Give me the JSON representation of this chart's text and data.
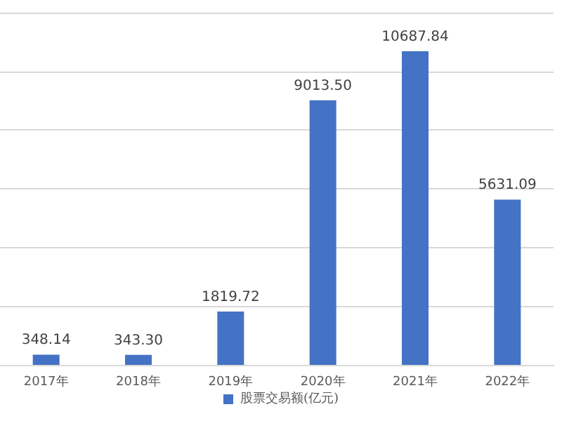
{
  "chart_data": {
    "type": "bar",
    "categories": [
      "2017年",
      "2018年",
      "2019年",
      "2020年",
      "2021年",
      "2022年"
    ],
    "series": [
      {
        "name": "股票交易额(亿元)",
        "color": "#4472c4",
        "values": [
          348.14,
          343.3,
          1819.72,
          9013.5,
          10687.84,
          5631.09
        ],
        "value_labels": [
          "348.14",
          "343.30",
          "1819.72",
          "9013.50",
          "10687.84",
          "5631.09"
        ]
      }
    ],
    "tick_labels": "x",
    "grid": "y",
    "legend": "bottom"
  }
}
